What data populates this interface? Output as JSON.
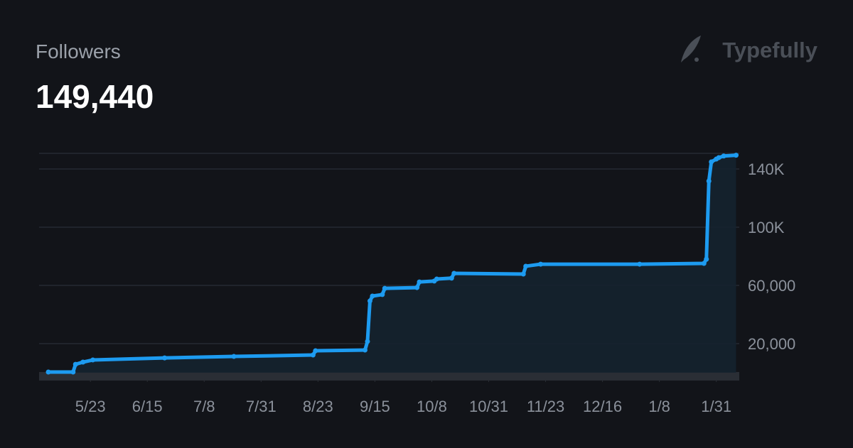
{
  "header": {
    "title": "Followers",
    "total": "149,440",
    "brand": "Typefully"
  },
  "chart_data": {
    "type": "line",
    "x": [
      "5/6",
      "5/16",
      "5/17",
      "5/20",
      "5/24",
      "6/22",
      "7/20",
      "8/21",
      "8/22",
      "9/11",
      "9/12",
      "9/13",
      "9/14",
      "9/18",
      "9/19",
      "10/2",
      "10/3",
      "10/9",
      "10/10",
      "10/16",
      "10/17",
      "11/14",
      "11/15",
      "11/21",
      "12/31",
      "1/26",
      "1/27",
      "1/28",
      "1/29",
      "1/31",
      "2/1",
      "2/3",
      "2/8"
    ],
    "series": [
      {
        "name": "Followers",
        "color": "#1d9bf0",
        "values": [
          500,
          500,
          5800,
          7300,
          8800,
          10200,
          11200,
          12200,
          15100,
          15600,
          21500,
          49300,
          52700,
          53700,
          58000,
          58500,
          62400,
          63000,
          64400,
          65000,
          68300,
          67800,
          73200,
          74600,
          74600,
          75100,
          78000,
          131700,
          144900,
          146800,
          147800,
          148900,
          149440
        ]
      }
    ],
    "xlim": [
      "5/6",
      "2/9"
    ],
    "xticks": [
      "5/23",
      "6/15",
      "7/8",
      "7/31",
      "8/23",
      "9/15",
      "10/8",
      "10/31",
      "11/23",
      "12/16",
      "1/8",
      "1/31"
    ],
    "ylim": [
      0,
      150000
    ],
    "yticks": [
      {
        "value": 20000,
        "label": "20,000"
      },
      {
        "value": 60000,
        "label": "60,000"
      },
      {
        "value": 100000,
        "label": "100K"
      },
      {
        "value": 140000,
        "label": "140K"
      }
    ],
    "grid": true
  }
}
